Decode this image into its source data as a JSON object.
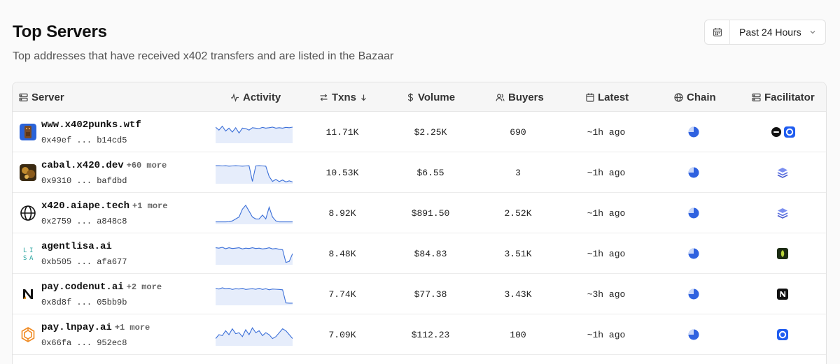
{
  "header": {
    "title": "Top Servers",
    "subtitle": "Top addresses that have received x402 transfers and are listed in the Bazaar"
  },
  "range_picker": {
    "label": "Past 24 Hours",
    "icon": "calendar-icon"
  },
  "columns": {
    "server": "Server",
    "activity": "Activity",
    "txns": "Txns",
    "volume": "Volume",
    "buyers": "Buyers",
    "latest": "Latest",
    "chain": "Chain",
    "facilitator": "Facilitator"
  },
  "rows": [
    {
      "name": "www.x402punks.wtf",
      "more": "",
      "addr_start": "0x49ef",
      "addr_end": "b14cd5",
      "txns": "11.71K",
      "volume": "$2.25K",
      "buyers": "690",
      "latest": "~1h ago",
      "logo": "punk-logo",
      "facilitators": [
        "black-circle-logo",
        "blue-ring-logo"
      ]
    },
    {
      "name": "cabal.x420.dev",
      "more": "+60 more",
      "addr_start": "0x9310",
      "addr_end": "bafdbd",
      "txns": "10.53K",
      "volume": "$6.55",
      "buyers": "3",
      "latest": "~1h ago",
      "logo": "cabal-logo",
      "facilitators": [
        "layers-logo"
      ]
    },
    {
      "name": "x420.aiape.tech",
      "more": "+1 more",
      "addr_start": "0x2759",
      "addr_end": "a848c8",
      "txns": "8.92K",
      "volume": "$891.50",
      "buyers": "2.52K",
      "latest": "~1h ago",
      "logo": "globe-logo",
      "facilitators": [
        "layers-logo"
      ]
    },
    {
      "name": "agentlisa.ai",
      "more": "",
      "addr_start": "0xb505",
      "addr_end": "afa677",
      "txns": "8.48K",
      "volume": "$84.83",
      "buyers": "3.51K",
      "latest": "~1h ago",
      "logo": "lisa-logo",
      "logo_text": "LISA",
      "facilitators": [
        "green-leaf-logo"
      ]
    },
    {
      "name": "pay.codenut.ai",
      "more": "+2 more",
      "addr_start": "0x8d8f",
      "addr_end": "05bb9b",
      "txns": "7.74K",
      "volume": "$77.38",
      "buyers": "3.43K",
      "latest": "~3h ago",
      "logo": "codenut-logo",
      "facilitators": [
        "n-logo"
      ]
    },
    {
      "name": "pay.lnpay.ai",
      "more": "+1 more",
      "addr_start": "0x66fa",
      "addr_end": "952ec8",
      "txns": "7.09K",
      "volume": "$112.23",
      "buyers": "100",
      "latest": "~1h ago",
      "logo": "lnpay-logo",
      "facilitators": [
        "blue-ring-logo"
      ]
    }
  ],
  "chain_icon": "base-chain-icon",
  "colors": {
    "accent": "#3b6fd8",
    "spark_fill": "#e6edfb"
  }
}
